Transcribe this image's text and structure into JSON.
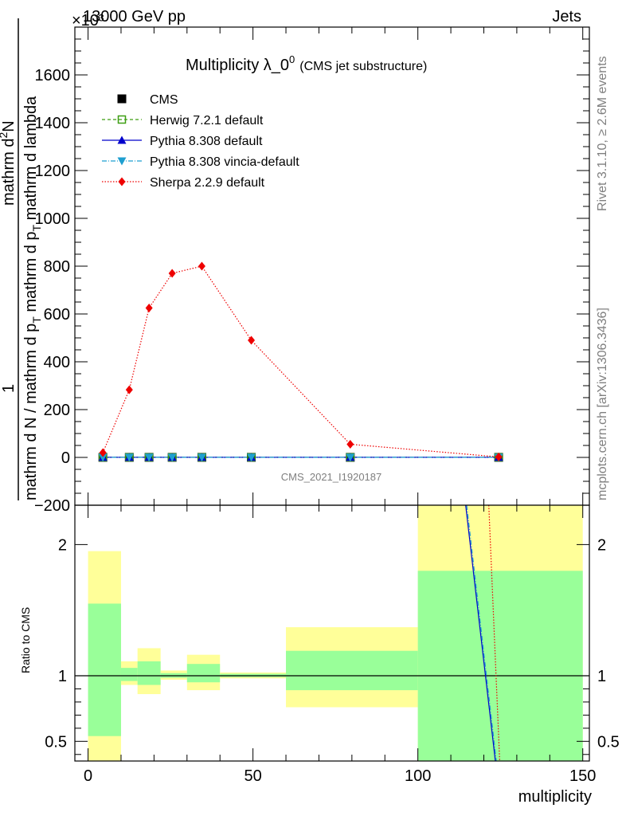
{
  "header": {
    "energy_label": "13000 GeV pp",
    "process_label": "Jets",
    "exponent_label": "×10³",
    "title_main": "Multiplicity λ_0",
    "title_sup": "0",
    "title_sub": "(CMS jet substructure)",
    "rivet_label": "Rivet 3.1.10, ≥ 2.6M events",
    "mcplots_label": "mcplots.cern.ch [arXiv:1306.3436]",
    "analysis_label": "CMS_2021_I1920187"
  },
  "axes": {
    "ylabel_parts": [
      "1",
      "mathrm d N / mathrm d p",
      "T",
      "mathrm d p",
      "T",
      "mathrm d lambda",
      "mathrm d",
      "2",
      "N"
    ],
    "ylabel_fraction_top": "1",
    "ylabel_fraction_bottom": "mathrm d N / mathrm d p",
    "ylabel_T1": "T",
    "ylabel_mid": "mathrm d p",
    "ylabel_T2": "T",
    "ylabel_tail": "mathrm d lambda",
    "ylabel_numer": "mathrm d",
    "ylabel_numer_sup": "2",
    "ylabel_numer_N": "N",
    "ratio_ylabel": "Ratio to CMS",
    "xlabel": "multiplicity"
  },
  "chart_data": {
    "type": "line",
    "xlabel": "multiplicity",
    "main_ylim": [
      -200,
      1800
    ],
    "main_yticks": [
      -200,
      0,
      200,
      400,
      600,
      800,
      1000,
      1200,
      1400,
      1600
    ],
    "main_ytick_labels": [
      "−200",
      "0",
      "200",
      "400",
      "600",
      "800",
      "1000",
      "1200",
      "1400",
      "1600"
    ],
    "ratio_ylim": [
      0.35,
      2.3
    ],
    "ratio_yticks": [
      0.5,
      1,
      2
    ],
    "ratio_ytick_labels": [
      "0.5",
      "1",
      "2"
    ],
    "xlim": [
      -4,
      152
    ],
    "xticks": [
      0,
      50,
      100,
      150
    ],
    "xtick_labels": [
      "0",
      "50",
      "100",
      "150"
    ],
    "x": [
      4.5,
      12.5,
      18.5,
      25.5,
      34.5,
      49.5,
      79.5,
      124.5
    ],
    "series": [
      {
        "name": "CMS",
        "color": "#000000",
        "marker": "square",
        "values": [
          0.3,
          0.3,
          0.3,
          0.3,
          0.3,
          0.3,
          0.3,
          0.3
        ]
      },
      {
        "name": "Herwig 7.2.1 default",
        "color": "#3d9e12",
        "marker": "open-square",
        "dash": "4,3",
        "values": [
          0.3,
          0.3,
          0.3,
          0.3,
          0.3,
          0.3,
          0.3,
          0.3
        ]
      },
      {
        "name": "Pythia 8.308 default",
        "color": "#0000cc",
        "marker": "triangle-up",
        "dash": "",
        "values": [
          0.3,
          0.3,
          0.3,
          0.3,
          0.3,
          0.3,
          0.3,
          0.3
        ]
      },
      {
        "name": "Pythia 8.308 vincia-default",
        "color": "#1f9fd0",
        "marker": "triangle-down",
        "dash": "6,2,1,2",
        "values": [
          0.3,
          0.3,
          0.3,
          0.3,
          0.3,
          0.3,
          0.3,
          0.3
        ]
      },
      {
        "name": "Sherpa 2.2.9 default",
        "color": "#ee0000",
        "marker": "diamond",
        "dash": "1.5,2",
        "values": [
          20,
          283,
          625,
          770,
          800,
          490,
          55,
          2
        ]
      }
    ],
    "ratio_bands": [
      {
        "x0": 0,
        "x1": 10,
        "yellow": [
          0.35,
          1.95
        ],
        "green": [
          0.54,
          1.55
        ]
      },
      {
        "x0": 10,
        "x1": 15,
        "yellow": [
          0.93,
          1.11
        ],
        "green": [
          0.96,
          1.06
        ]
      },
      {
        "x0": 15,
        "x1": 22,
        "yellow": [
          0.86,
          1.21
        ],
        "green": [
          0.93,
          1.11
        ]
      },
      {
        "x0": 22,
        "x1": 30,
        "yellow": [
          0.97,
          1.04
        ],
        "green": [
          0.985,
          1.02
        ]
      },
      {
        "x0": 30,
        "x1": 40,
        "yellow": [
          0.89,
          1.16
        ],
        "green": [
          0.95,
          1.09
        ]
      },
      {
        "x0": 40,
        "x1": 60,
        "yellow": [
          0.98,
          1.025
        ],
        "green": [
          0.99,
          1.015
        ]
      },
      {
        "x0": 60,
        "x1": 100,
        "yellow": [
          0.76,
          1.37
        ],
        "green": [
          0.89,
          1.19
        ]
      },
      {
        "x0": 100,
        "x1": 150,
        "yellow": [
          0.35,
          2.3
        ],
        "green": [
          0.35,
          1.8
        ]
      }
    ],
    "ratio_lines": [
      {
        "name": "Pythia 8.308 default",
        "color": "#0000cc",
        "dash": "",
        "points": [
          [
            114.5,
            2.3
          ],
          [
            123.5,
            0.35
          ]
        ]
      },
      {
        "name": "Pythia 8.308 vincia-default",
        "color": "#1f9fd0",
        "dash": "6,2,1,2",
        "points": [
          [
            114.8,
            2.3
          ],
          [
            123.8,
            0.35
          ]
        ]
      },
      {
        "name": "Sherpa 2.2.9 default",
        "color": "#ee0000",
        "dash": "1.5,2",
        "points": [
          [
            121.5,
            2.3
          ],
          [
            124.8,
            0.35
          ]
        ]
      }
    ],
    "colors": {
      "band_yellow": "#ffff99",
      "band_green": "#99ff99"
    }
  }
}
